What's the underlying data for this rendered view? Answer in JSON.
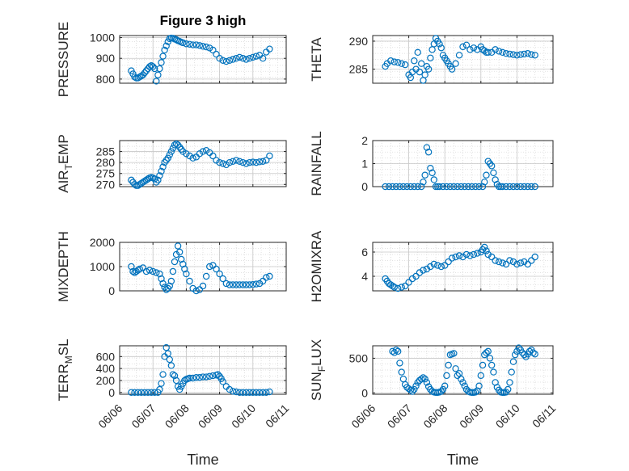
{
  "figure": {
    "title": "Figure 3 high"
  },
  "colors": {
    "marker": "#0072BD",
    "axis": "#262626",
    "grid": "#d9d9d9"
  },
  "chart_data": [
    {
      "type": "scatter",
      "ylabel": "PRESSURE",
      "xlabel": "",
      "title": "Figure 3 high",
      "xlim": [
        0,
        5
      ],
      "x_tick_labels": [],
      "ylim": [
        780,
        1010
      ],
      "yticks": [
        800,
        900,
        1000
      ],
      "grid": true,
      "x": [
        0.35,
        0.4,
        0.45,
        0.5,
        0.55,
        0.6,
        0.65,
        0.7,
        0.75,
        0.8,
        0.85,
        0.9,
        0.95,
        1.0,
        1.05,
        1.1,
        1.15,
        1.2,
        1.25,
        1.3,
        1.35,
        1.4,
        1.45,
        1.5,
        1.55,
        1.6,
        1.65,
        1.7,
        1.75,
        1.8,
        1.85,
        1.9,
        2.0,
        2.1,
        2.2,
        2.3,
        2.4,
        2.5,
        2.6,
        2.7,
        2.8,
        2.9,
        3.0,
        3.1,
        3.2,
        3.3,
        3.4,
        3.5,
        3.6,
        3.7,
        3.8,
        3.9,
        4.0,
        4.1,
        4.2,
        4.3,
        4.4,
        4.5
      ],
      "y": [
        840,
        825,
        810,
        805,
        805,
        810,
        815,
        820,
        830,
        840,
        850,
        860,
        865,
        860,
        850,
        790,
        820,
        850,
        880,
        910,
        940,
        960,
        980,
        995,
        998,
        997,
        993,
        990,
        985,
        982,
        978,
        975,
        970,
        968,
        965,
        965,
        962,
        958,
        955,
        950,
        940,
        920,
        900,
        890,
        885,
        890,
        895,
        900,
        905,
        900,
        895,
        900,
        905,
        910,
        915,
        900,
        930,
        945
      ]
    },
    {
      "type": "scatter",
      "ylabel": "THETA",
      "xlabel": "",
      "xlim": [
        0,
        5
      ],
      "x_tick_labels": [],
      "ylim": [
        282.5,
        291
      ],
      "yticks": [
        285,
        290
      ],
      "grid": true,
      "x": [
        0.35,
        0.4,
        0.5,
        0.6,
        0.7,
        0.8,
        0.9,
        1.0,
        1.05,
        1.1,
        1.15,
        1.2,
        1.25,
        1.3,
        1.35,
        1.4,
        1.45,
        1.5,
        1.55,
        1.6,
        1.65,
        1.7,
        1.75,
        1.8,
        1.85,
        1.9,
        1.95,
        2.0,
        2.05,
        2.1,
        2.15,
        2.2,
        2.3,
        2.4,
        2.5,
        2.6,
        2.7,
        2.8,
        2.9,
        3.0,
        3.05,
        3.1,
        3.15,
        3.2,
        3.3,
        3.4,
        3.5,
        3.6,
        3.7,
        3.8,
        3.9,
        4.0,
        4.1,
        4.2,
        4.3,
        4.4,
        4.5
      ],
      "y": [
        285.5,
        286,
        286.5,
        286.3,
        286.2,
        286,
        285.8,
        284,
        283.5,
        284.5,
        286.5,
        285,
        288,
        284.5,
        286,
        283,
        284,
        285.5,
        285,
        287,
        288.5,
        289.5,
        290.5,
        290,
        289.5,
        288.8,
        287.5,
        287,
        286.5,
        286,
        285.5,
        285,
        286,
        287.5,
        289,
        289.3,
        288.5,
        288.8,
        288.5,
        289,
        288.5,
        288.3,
        288,
        288,
        288,
        288.5,
        288.2,
        288,
        287.8,
        287.7,
        287.6,
        287.5,
        287.6,
        287.7,
        287.8,
        287.6,
        287.5
      ]
    },
    {
      "type": "scatter",
      "ylabel": "AIR_TEMP",
      "ylabel_main": "AIR",
      "ylabel_sub": "T",
      "ylabel_rest": "EMP",
      "xlabel": "",
      "xlim": [
        0,
        5
      ],
      "x_tick_labels": [],
      "ylim": [
        269,
        290
      ],
      "yticks": [
        270,
        275,
        280,
        285
      ],
      "grid": true,
      "x": [
        0.35,
        0.4,
        0.45,
        0.5,
        0.55,
        0.6,
        0.65,
        0.7,
        0.75,
        0.8,
        0.85,
        0.9,
        0.95,
        1.0,
        1.05,
        1.1,
        1.15,
        1.2,
        1.25,
        1.3,
        1.35,
        1.4,
        1.45,
        1.5,
        1.55,
        1.6,
        1.65,
        1.7,
        1.75,
        1.8,
        1.85,
        1.9,
        2.0,
        2.1,
        2.2,
        2.3,
        2.4,
        2.5,
        2.6,
        2.7,
        2.8,
        2.9,
        3.0,
        3.1,
        3.2,
        3.3,
        3.4,
        3.5,
        3.6,
        3.7,
        3.8,
        3.9,
        4.0,
        4.1,
        4.2,
        4.3,
        4.4,
        4.5
      ],
      "y": [
        272,
        271,
        270,
        269.5,
        269.5,
        270,
        270.5,
        271,
        271.5,
        272,
        272.5,
        273,
        273.2,
        273,
        272.5,
        271,
        272,
        274,
        276,
        278,
        280,
        281,
        282,
        283.5,
        285,
        286.5,
        288,
        288.5,
        288,
        287,
        286,
        285,
        284,
        283,
        282,
        282.5,
        284,
        285,
        285.5,
        284.5,
        283,
        281,
        280,
        279.5,
        279,
        280,
        280.5,
        281,
        280.5,
        280,
        279.5,
        280,
        280.2,
        280,
        280.3,
        280.5,
        281,
        283
      ]
    },
    {
      "type": "scatter",
      "ylabel": "RAINFALL",
      "xlabel": "",
      "xlim": [
        0,
        5
      ],
      "x_tick_labels": [],
      "ylim": [
        0,
        2
      ],
      "yticks": [
        0,
        1,
        2
      ],
      "grid": true,
      "x": [
        0.35,
        0.45,
        0.55,
        0.65,
        0.75,
        0.85,
        0.95,
        1.05,
        1.15,
        1.25,
        1.35,
        1.4,
        1.45,
        1.5,
        1.55,
        1.6,
        1.65,
        1.7,
        1.75,
        1.8,
        1.85,
        1.95,
        2.05,
        2.15,
        2.25,
        2.35,
        2.45,
        2.55,
        2.65,
        2.75,
        2.85,
        2.95,
        3.05,
        3.1,
        3.15,
        3.2,
        3.25,
        3.3,
        3.35,
        3.4,
        3.45,
        3.5,
        3.55,
        3.6,
        3.7,
        3.8,
        3.9,
        4.0,
        4.1,
        4.2,
        4.3,
        4.4,
        4.5
      ],
      "y": [
        0,
        0,
        0,
        0,
        0,
        0,
        0,
        0,
        0,
        0,
        0,
        0.2,
        0.5,
        1.7,
        1.5,
        0.8,
        0.6,
        0.3,
        0,
        0,
        0,
        0,
        0,
        0,
        0,
        0,
        0,
        0,
        0,
        0,
        0,
        0,
        0,
        0.2,
        0.5,
        1.1,
        1.0,
        0.9,
        0.6,
        0.3,
        0.1,
        0,
        0,
        0,
        0,
        0,
        0,
        0,
        0,
        0,
        0,
        0,
        0
      ]
    },
    {
      "type": "scatter",
      "ylabel": "MIXDEPTH",
      "xlabel": "",
      "xlim": [
        0,
        5
      ],
      "x_tick_labels": [],
      "ylim": [
        0,
        2000
      ],
      "yticks": [
        0,
        1000,
        2000
      ],
      "grid": true,
      "x": [
        0.35,
        0.4,
        0.45,
        0.5,
        0.55,
        0.6,
        0.7,
        0.8,
        0.9,
        1.0,
        1.1,
        1.2,
        1.25,
        1.3,
        1.35,
        1.4,
        1.45,
        1.5,
        1.55,
        1.6,
        1.65,
        1.7,
        1.75,
        1.8,
        1.85,
        1.9,
        1.95,
        2.0,
        2.1,
        2.2,
        2.3,
        2.4,
        2.5,
        2.6,
        2.7,
        2.8,
        2.9,
        3.0,
        3.1,
        3.2,
        3.3,
        3.4,
        3.5,
        3.6,
        3.7,
        3.8,
        3.9,
        4.0,
        4.1,
        4.2,
        4.3,
        4.4,
        4.5
      ],
      "y": [
        1000,
        800,
        750,
        800,
        850,
        900,
        950,
        800,
        850,
        800,
        750,
        700,
        500,
        300,
        150,
        50,
        100,
        200,
        400,
        800,
        1200,
        1500,
        1850,
        1600,
        1300,
        1100,
        900,
        700,
        400,
        100,
        0,
        50,
        200,
        600,
        1000,
        1050,
        900,
        700,
        500,
        300,
        250,
        250,
        250,
        250,
        250,
        250,
        250,
        260,
        280,
        300,
        400,
        550,
        600
      ]
    },
    {
      "type": "scatter",
      "ylabel": "H2OMIXRA",
      "xlabel": "",
      "xlim": [
        0,
        5
      ],
      "x_tick_labels": [],
      "ylim": [
        2.8,
        6.8
      ],
      "yticks": [
        4,
        6
      ],
      "grid": true,
      "x": [
        0.35,
        0.4,
        0.45,
        0.5,
        0.55,
        0.6,
        0.7,
        0.8,
        0.9,
        1.0,
        1.1,
        1.2,
        1.3,
        1.4,
        1.5,
        1.6,
        1.7,
        1.8,
        1.9,
        2.0,
        2.1,
        2.2,
        2.3,
        2.4,
        2.5,
        2.6,
        2.7,
        2.8,
        2.9,
        3.0,
        3.05,
        3.1,
        3.15,
        3.2,
        3.3,
        3.4,
        3.5,
        3.6,
        3.7,
        3.8,
        3.9,
        4.0,
        4.1,
        4.2,
        4.3,
        4.4,
        4.5
      ],
      "y": [
        3.8,
        3.6,
        3.4,
        3.3,
        3.2,
        3.1,
        3.0,
        3.1,
        3.2,
        3.5,
        3.8,
        4.0,
        4.3,
        4.5,
        4.6,
        4.8,
        5.0,
        4.9,
        4.8,
        4.9,
        5.2,
        5.5,
        5.6,
        5.7,
        5.6,
        5.8,
        5.7,
        5.8,
        5.9,
        6.0,
        6.2,
        6.4,
        6.1,
        5.8,
        5.6,
        5.3,
        5.2,
        5.1,
        5.0,
        5.3,
        5.2,
        5.0,
        5.1,
        5.2,
        5.0,
        5.3,
        5.6
      ]
    },
    {
      "type": "scatter",
      "ylabel": "TERR_MSL",
      "ylabel_main": "TERR",
      "ylabel_sub": "M",
      "ylabel_rest": "SL",
      "xlabel": "Time",
      "xlim": [
        0,
        5
      ],
      "x_tick_labels": [
        "06/06",
        "06/07",
        "06/08",
        "06/09",
        "06/10",
        "06/11"
      ],
      "ylim": [
        -30,
        780
      ],
      "yticks": [
        0,
        200,
        400,
        600
      ],
      "grid": true,
      "x": [
        0.35,
        0.45,
        0.55,
        0.65,
        0.75,
        0.85,
        0.95,
        1.05,
        1.15,
        1.2,
        1.25,
        1.3,
        1.35,
        1.4,
        1.45,
        1.5,
        1.55,
        1.6,
        1.65,
        1.7,
        1.75,
        1.8,
        1.85,
        1.9,
        1.95,
        2.0,
        2.05,
        2.1,
        2.2,
        2.3,
        2.4,
        2.5,
        2.6,
        2.7,
        2.8,
        2.9,
        2.95,
        3.0,
        3.05,
        3.1,
        3.2,
        3.3,
        3.4,
        3.5,
        3.6,
        3.7,
        3.8,
        3.9,
        4.0,
        4.1,
        4.2,
        4.3,
        4.4,
        4.5
      ],
      "y": [
        0,
        0,
        0,
        0,
        0,
        0,
        0,
        0,
        0,
        50,
        150,
        300,
        600,
        750,
        650,
        550,
        450,
        300,
        280,
        200,
        100,
        50,
        100,
        150,
        200,
        220,
        230,
        240,
        240,
        250,
        250,
        260,
        260,
        270,
        280,
        290,
        300,
        270,
        230,
        180,
        100,
        50,
        20,
        10,
        0,
        0,
        0,
        0,
        0,
        0,
        0,
        0,
        0,
        10
      ]
    },
    {
      "type": "scatter",
      "ylabel": "SUN_FLUX",
      "ylabel_main": "SUN",
      "ylabel_sub": "F",
      "ylabel_rest": "LUX",
      "xlabel": "Time",
      "xlim": [
        0,
        5
      ],
      "x_tick_labels": [
        "06/06",
        "06/07",
        "06/08",
        "06/09",
        "06/10",
        "06/11"
      ],
      "ylim": [
        -20,
        680
      ],
      "yticks": [
        0,
        500
      ],
      "grid": true,
      "x": [
        0.55,
        0.6,
        0.65,
        0.7,
        0.75,
        0.8,
        0.85,
        0.9,
        0.95,
        1.0,
        1.05,
        1.1,
        1.15,
        1.2,
        1.25,
        1.3,
        1.35,
        1.4,
        1.45,
        1.5,
        1.55,
        1.6,
        1.65,
        1.7,
        1.75,
        1.8,
        1.85,
        1.9,
        1.95,
        2.0,
        2.05,
        2.1,
        2.15,
        2.2,
        2.25,
        2.3,
        2.35,
        2.4,
        2.45,
        2.5,
        2.55,
        2.6,
        2.65,
        2.7,
        2.75,
        2.8,
        2.85,
        2.9,
        2.95,
        3.0,
        3.05,
        3.1,
        3.15,
        3.2,
        3.25,
        3.3,
        3.35,
        3.4,
        3.45,
        3.5,
        3.55,
        3.6,
        3.65,
        3.7,
        3.75,
        3.8,
        3.85,
        3.9,
        3.95,
        4.0,
        4.05,
        4.1,
        4.15,
        4.2,
        4.25,
        4.3,
        4.35,
        4.4,
        4.45,
        4.5
      ],
      "y": [
        600,
        580,
        620,
        600,
        430,
        300,
        200,
        120,
        80,
        60,
        40,
        20,
        50,
        100,
        150,
        180,
        200,
        220,
        200,
        150,
        90,
        50,
        20,
        10,
        5,
        5,
        10,
        20,
        50,
        100,
        250,
        400,
        550,
        560,
        570,
        350,
        250,
        280,
        200,
        150,
        100,
        50,
        20,
        10,
        5,
        5,
        10,
        30,
        100,
        250,
        400,
        550,
        580,
        600,
        500,
        400,
        300,
        150,
        80,
        40,
        10,
        5,
        5,
        10,
        50,
        150,
        300,
        450,
        550,
        600,
        650,
        620,
        580,
        550,
        520,
        560,
        600,
        620,
        580,
        560
      ]
    }
  ]
}
